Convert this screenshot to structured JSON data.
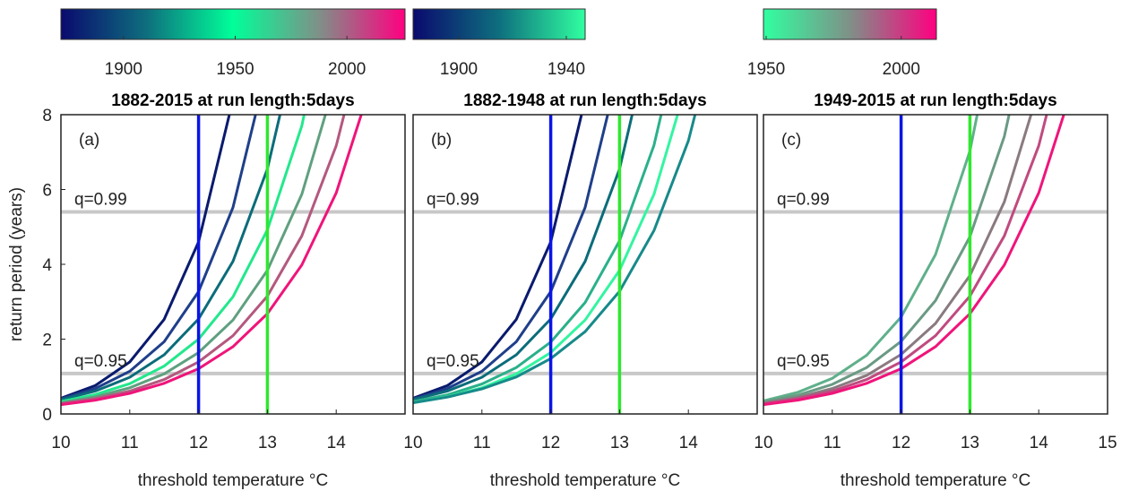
{
  "chart_data": [
    {
      "type": "line",
      "title": "1882-2015 at run length:5days",
      "panel_label": "(a)",
      "xlabel": "threshold temperature °C",
      "ylabel": "return period (years)",
      "x": [
        10,
        10.5,
        11,
        11.5,
        12,
        12.5,
        13,
        13.5,
        14,
        14.5
      ],
      "series": [
        {
          "color": "#0a1a6e",
          "values": [
            0.42,
            0.76,
            1.39,
            2.53,
            4.6,
            8.4,
            null,
            null,
            null,
            null
          ]
        },
        {
          "color": "#1f3f8a",
          "values": [
            0.4,
            0.68,
            1.14,
            1.93,
            3.27,
            5.52,
            9.3,
            null,
            null,
            null
          ]
        },
        {
          "color": "#0b6c7a",
          "values": [
            0.38,
            0.61,
            0.98,
            1.58,
            2.54,
            4.08,
            6.55,
            10.5,
            null,
            null
          ]
        },
        {
          "color": "#22e88c",
          "values": [
            0.33,
            0.52,
            0.81,
            1.28,
            2.0,
            3.13,
            4.92,
            7.7,
            12.1,
            null
          ]
        },
        {
          "color": "#5fa07f",
          "values": [
            0.3,
            0.46,
            0.7,
            1.07,
            1.64,
            2.51,
            3.84,
            5.87,
            8.97,
            null
          ]
        },
        {
          "color": "#b4587e",
          "values": [
            0.27,
            0.41,
            0.61,
            0.92,
            1.39,
            2.09,
            3.15,
            4.76,
            7.17,
            10.8
          ]
        },
        {
          "color": "#f0147a",
          "values": [
            0.25,
            0.37,
            0.55,
            0.82,
            1.21,
            1.8,
            2.68,
            3.98,
            5.91,
            8.78
          ]
        }
      ],
      "xlim": [
        10,
        15
      ],
      "ylim": [
        0,
        8
      ],
      "xticks": [
        10,
        11,
        12,
        13,
        14
      ],
      "yticks": [
        0,
        2,
        4,
        6,
        8
      ],
      "hlines": [
        {
          "label": "q=0.99",
          "value": 5.4
        },
        {
          "label": "q=0.95",
          "value": 1.08
        }
      ],
      "vlines": [
        {
          "value": 12,
          "color": "#0a14e6"
        },
        {
          "value": 13,
          "color": "#2ee82e"
        }
      ],
      "colorbar": {
        "clim": [
          1872,
          2026
        ],
        "ticks": [
          1900,
          1950,
          2000
        ],
        "colors": [
          "#0a0a6e",
          "#0e6f7e",
          "#00ff99",
          "#7f9088",
          "#ff0080"
        ]
      }
    },
    {
      "type": "line",
      "title": "1882-1948 at run length:5days",
      "panel_label": "(b)",
      "xlabel": "threshold temperature °C",
      "x": [
        10,
        10.5,
        11,
        11.5,
        12,
        12.5,
        13,
        13.5,
        14,
        14.5
      ],
      "series": [
        {
          "color": "#0a1a6e",
          "values": [
            0.42,
            0.76,
            1.39,
            2.53,
            4.6,
            8.4,
            null,
            null,
            null,
            null
          ]
        },
        {
          "color": "#1f3f8a",
          "values": [
            0.4,
            0.68,
            1.14,
            1.93,
            3.27,
            5.52,
            9.3,
            null,
            null,
            null
          ]
        },
        {
          "color": "#0b6c7a",
          "values": [
            0.38,
            0.61,
            0.98,
            1.58,
            2.54,
            4.08,
            6.55,
            10.5,
            null,
            null
          ]
        },
        {
          "color": "#2ab08a",
          "values": [
            0.33,
            0.51,
            0.8,
            1.24,
            1.92,
            2.98,
            4.63,
            7.18,
            11.1,
            null
          ]
        },
        {
          "color": "#33f5a0",
          "values": [
            0.3,
            0.46,
            0.7,
            1.07,
            1.64,
            2.51,
            3.84,
            5.87,
            8.97,
            null
          ]
        },
        {
          "color": "#178a8a",
          "values": [
            0.3,
            0.45,
            0.67,
            0.99,
            1.48,
            2.2,
            3.28,
            4.9,
            7.3,
            10.9
          ]
        }
      ],
      "xlim": [
        10,
        15
      ],
      "ylim": [
        0,
        8
      ],
      "xticks": [
        10,
        11,
        12,
        13,
        14
      ],
      "hlines": [
        {
          "label": "q=0.99",
          "value": 5.4
        },
        {
          "label": "q=0.95",
          "value": 1.08
        }
      ],
      "vlines": [
        {
          "value": 12,
          "color": "#0a14e6"
        },
        {
          "value": 13,
          "color": "#2ee82e"
        }
      ],
      "colorbar": {
        "clim": [
          1883,
          1947
        ],
        "ticks": [
          1900,
          1940
        ],
        "colors": [
          "#0a0a6e",
          "#0e6f7e",
          "#30ffa0"
        ]
      }
    },
    {
      "type": "line",
      "title": "1949-2015 at run length:5days",
      "panel_label": "(c)",
      "xlabel": "threshold temperature °C",
      "x": [
        10,
        10.5,
        11,
        11.5,
        12,
        12.5,
        13,
        13.5,
        14,
        14.5
      ],
      "series": [
        {
          "color": "#5fb08a",
          "values": [
            0.35,
            0.58,
            0.95,
            1.57,
            2.59,
            4.26,
            7.03,
            11.6,
            null,
            null
          ]
        },
        {
          "color": "#6a9a84",
          "values": [
            0.32,
            0.5,
            0.79,
            1.24,
            1.94,
            3.03,
            4.74,
            7.42,
            11.6,
            null
          ]
        },
        {
          "color": "#8a7a80",
          "values": [
            0.29,
            0.44,
            0.68,
            1.03,
            1.59,
            2.42,
            3.7,
            5.67,
            8.67,
            null
          ]
        },
        {
          "color": "#c04a80",
          "values": [
            0.27,
            0.41,
            0.61,
            0.92,
            1.39,
            2.09,
            3.15,
            4.76,
            7.17,
            10.8
          ]
        },
        {
          "color": "#f0147a",
          "values": [
            0.25,
            0.37,
            0.55,
            0.82,
            1.21,
            1.8,
            2.68,
            3.98,
            5.91,
            8.78
          ]
        }
      ],
      "xlim": [
        10,
        15
      ],
      "ylim": [
        0,
        8
      ],
      "xticks": [
        10,
        11,
        12,
        13,
        14,
        15
      ],
      "hlines": [
        {
          "label": "q=0.99",
          "value": 5.4
        },
        {
          "label": "q=0.95",
          "value": 1.08
        }
      ],
      "vlines": [
        {
          "value": 12,
          "color": "#0a14e6"
        },
        {
          "value": 13,
          "color": "#2ee82e"
        }
      ],
      "colorbar": {
        "clim": [
          1949,
          2013
        ],
        "ticks": [
          1950,
          2000
        ],
        "colors": [
          "#30ffa0",
          "#7f9088",
          "#ff0080"
        ]
      }
    }
  ]
}
